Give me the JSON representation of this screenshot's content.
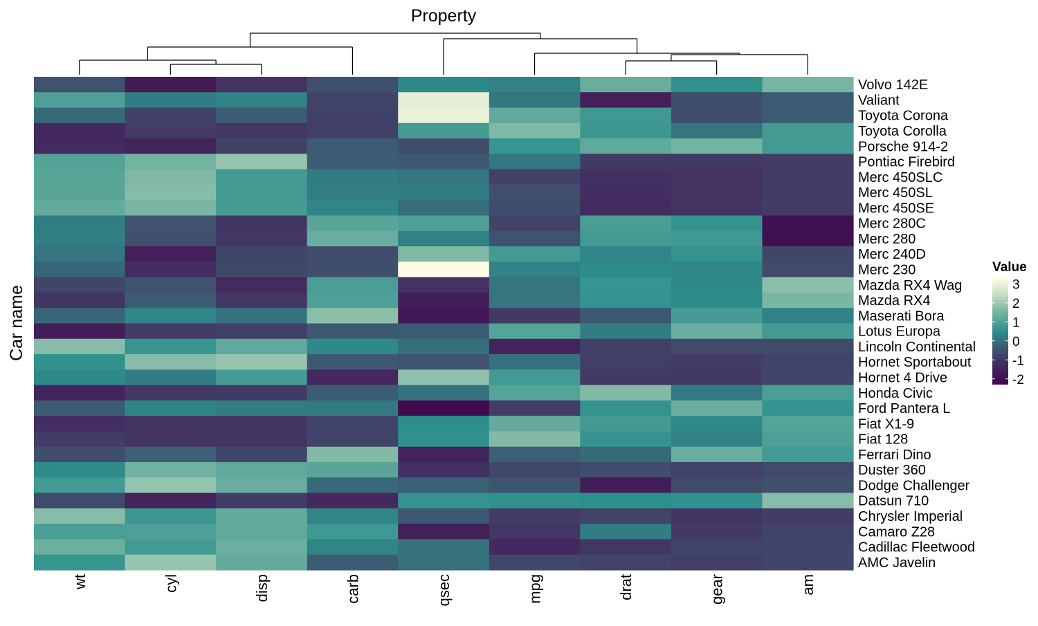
{
  "chart_data": {
    "type": "heatmap",
    "title": "Property",
    "xlabel": "",
    "ylabel": "Car name",
    "legend": {
      "title": "Value",
      "ticks": [
        3,
        2,
        1,
        0,
        -1,
        -2
      ],
      "placement": "right",
      "range": [
        -2.3,
        3.3
      ]
    },
    "columns": [
      "wt",
      "cyl",
      "disp",
      "carb",
      "qsec",
      "mpg",
      "drat",
      "gear",
      "am"
    ],
    "rows": [
      "Volvo 142E",
      "Valiant",
      "Toyota Corona",
      "Toyota Corolla",
      "Porsche 914-2",
      "Pontiac Firebird",
      "Merc 450SLC",
      "Merc 450SL",
      "Merc 450SE",
      "Merc 280C",
      "Merc 280",
      "Merc 240D",
      "Merc 230",
      "Mazda RX4 Wag",
      "Mazda RX4",
      "Maserati Bora",
      "Lotus Europa",
      "Lincoln Continental",
      "Hornet Sportabout",
      "Hornet 4 Drive",
      "Honda Civic",
      "Ford Pantera L",
      "Fiat X1-9",
      "Fiat 128",
      "Ferrari Dino",
      "Duster 360",
      "Dodge Challenger",
      "Datsun 710",
      "Chrysler Imperial",
      "Camaro Z28",
      "Cadillac Fleetwood",
      "AMC Javelin"
    ],
    "values": [
      [
        -0.45,
        -1.7,
        -1.1,
        -0.5,
        0.4,
        0.3,
        1.3,
        0.55,
        1.5
      ],
      [
        0.95,
        0.2,
        0.3,
        -0.75,
        2.9,
        0.1,
        -1.55,
        -0.55,
        -0.3
      ],
      [
        -0.1,
        -0.8,
        -0.3,
        -0.8,
        3.0,
        1.2,
        0.75,
        -0.55,
        -0.3
      ],
      [
        -1.3,
        -0.9,
        -1.0,
        -0.85,
        0.85,
        1.6,
        0.7,
        0.1,
        0.8
      ],
      [
        -1.25,
        -1.45,
        -0.8,
        -0.3,
        -0.55,
        0.65,
        1.2,
        1.45,
        0.8
      ],
      [
        1.0,
        1.45,
        1.9,
        -0.3,
        -0.35,
        0.1,
        -0.95,
        -0.95,
        -0.9
      ],
      [
        1.1,
        1.6,
        0.8,
        0.2,
        0.1,
        -0.8,
        -1.15,
        -1.1,
        -0.9
      ],
      [
        1.1,
        1.7,
        0.8,
        0.25,
        0.2,
        -0.5,
        -1.2,
        -1.1,
        -0.9
      ],
      [
        1.25,
        1.55,
        0.85,
        0.35,
        -0.05,
        -0.55,
        -1.25,
        -1.05,
        -0.9
      ],
      [
        0.2,
        -0.45,
        -1.05,
        1.1,
        0.95,
        -0.75,
        0.9,
        0.6,
        -2.0
      ],
      [
        0.25,
        -0.5,
        -1.0,
        1.3,
        0.3,
        -0.45,
        0.8,
        0.75,
        -2.0
      ],
      [
        0.1,
        -1.55,
        -0.7,
        -0.55,
        1.6,
        0.8,
        0.35,
        0.6,
        -0.7
      ],
      [
        -0.15,
        -1.2,
        -0.65,
        -0.55,
        3.3,
        0.3,
        0.45,
        0.35,
        -0.6
      ],
      [
        -0.7,
        -0.45,
        -1.25,
        0.9,
        -1.1,
        0.1,
        0.65,
        0.4,
        1.75
      ],
      [
        -1.05,
        -0.3,
        -1.0,
        0.95,
        -1.6,
        0.1,
        0.6,
        0.45,
        1.55
      ],
      [
        -0.15,
        0.35,
        0.05,
        1.75,
        -1.8,
        -0.95,
        -0.35,
        0.85,
        0.3
      ],
      [
        -1.6,
        -0.9,
        -0.85,
        -0.35,
        -0.3,
        1.05,
        0.2,
        1.3,
        0.8
      ],
      [
        1.7,
        0.65,
        1.2,
        0.4,
        0.0,
        -1.4,
        -0.8,
        -0.6,
        -0.6
      ],
      [
        0.55,
        1.7,
        1.9,
        -0.35,
        -0.45,
        0.05,
        -0.85,
        -0.9,
        -0.75
      ],
      [
        0.4,
        0.2,
        0.85,
        -1.3,
        1.8,
        0.8,
        -0.95,
        -0.95,
        -0.7
      ],
      [
        -1.4,
        -0.95,
        -0.95,
        -0.3,
        0.05,
        1.05,
        1.65,
        0.15,
        0.9
      ],
      [
        -0.3,
        0.35,
        0.2,
        0.15,
        -2.2,
        -0.9,
        0.6,
        1.3,
        0.6
      ],
      [
        -1.2,
        -1.05,
        -1.05,
        -0.75,
        0.5,
        1.25,
        0.8,
        0.4,
        1.05
      ],
      [
        -0.9,
        -1.05,
        -1.05,
        -0.75,
        0.55,
        1.65,
        0.6,
        0.3,
        0.95
      ],
      [
        -0.55,
        -0.25,
        -0.7,
        1.65,
        -1.45,
        -0.25,
        -0.1,
        1.3,
        0.8
      ],
      [
        0.45,
        1.4,
        1.2,
        1.1,
        -1.15,
        -0.65,
        -0.55,
        -0.75,
        -0.6
      ],
      [
        0.8,
        1.85,
        1.3,
        -0.1,
        -0.25,
        -0.4,
        -1.6,
        -0.6,
        -0.5
      ],
      [
        -0.6,
        -1.45,
        -0.9,
        -1.3,
        0.6,
        0.55,
        0.5,
        0.55,
        1.7
      ],
      [
        1.7,
        0.7,
        1.25,
        0.35,
        -0.35,
        -0.9,
        -0.75,
        -1.05,
        -0.9
      ],
      [
        0.9,
        0.95,
        1.2,
        0.75,
        -1.55,
        -1.0,
        0.2,
        -0.95,
        -0.75
      ],
      [
        1.35,
        0.8,
        1.35,
        0.35,
        0.05,
        -1.3,
        -1.0,
        -0.75,
        -0.7
      ],
      [
        0.65,
        1.9,
        1.25,
        -0.3,
        0.05,
        -0.65,
        -0.75,
        -0.85,
        -0.7
      ]
    ]
  }
}
